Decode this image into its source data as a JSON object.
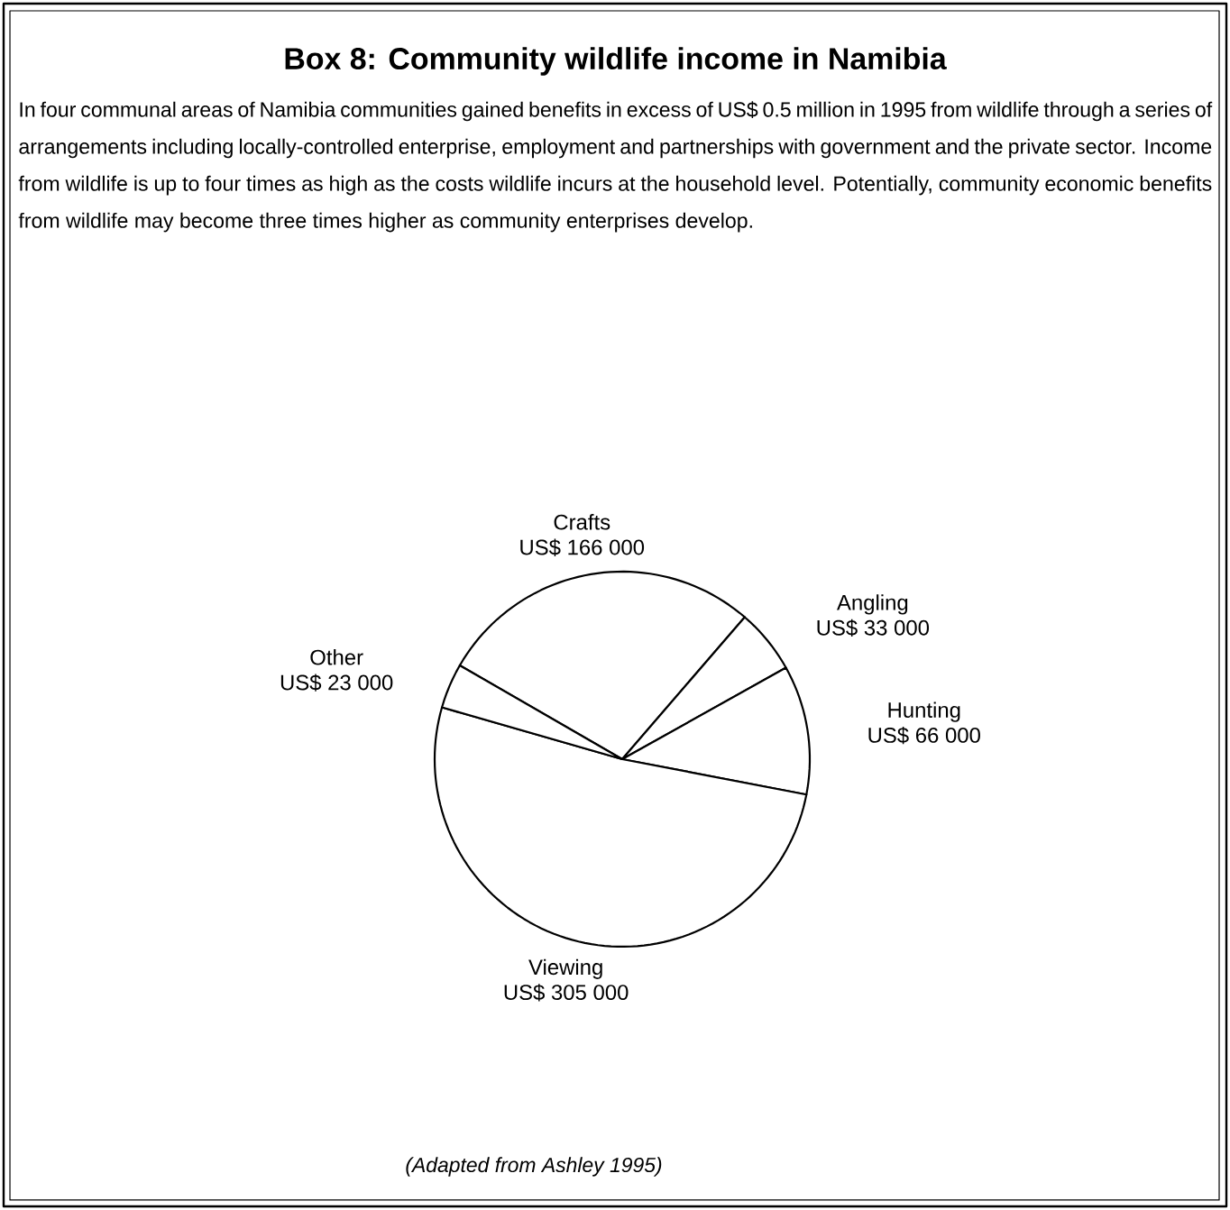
{
  "chart_data": {
    "type": "pie",
    "title": "Box 8: Community wildlife income in Namibia",
    "subtitle": "In four communal areas of Namibia communities gained benefits in excess of US$ 0.5 million in 1995 from wildlife through a series of arrangements including locally-controlled enterprise, employment and partnerships with government and the private sector. Income from wildlife is up to four times as high as the costs wildlife incurs at the household level. Potentially, community economic benefits from wildlife may become three times higher as community enterprises develop.",
    "categories": [
      "Crafts",
      "Angling",
      "Hunting",
      "Viewing",
      "Other"
    ],
    "values": [
      166000,
      33000,
      66000,
      305000,
      23000
    ],
    "value_labels": [
      "US$ 166 000",
      "US$ 33 000",
      "US$ 66 000",
      "US$ 305 000",
      "US$ 23 000"
    ],
    "colors": [
      "#ffffff",
      "#ffffff",
      "#ffffff",
      "#ffffff",
      "#ffffff"
    ],
    "annotations": [
      "(Adapted from Ashley 1995)"
    ]
  }
}
